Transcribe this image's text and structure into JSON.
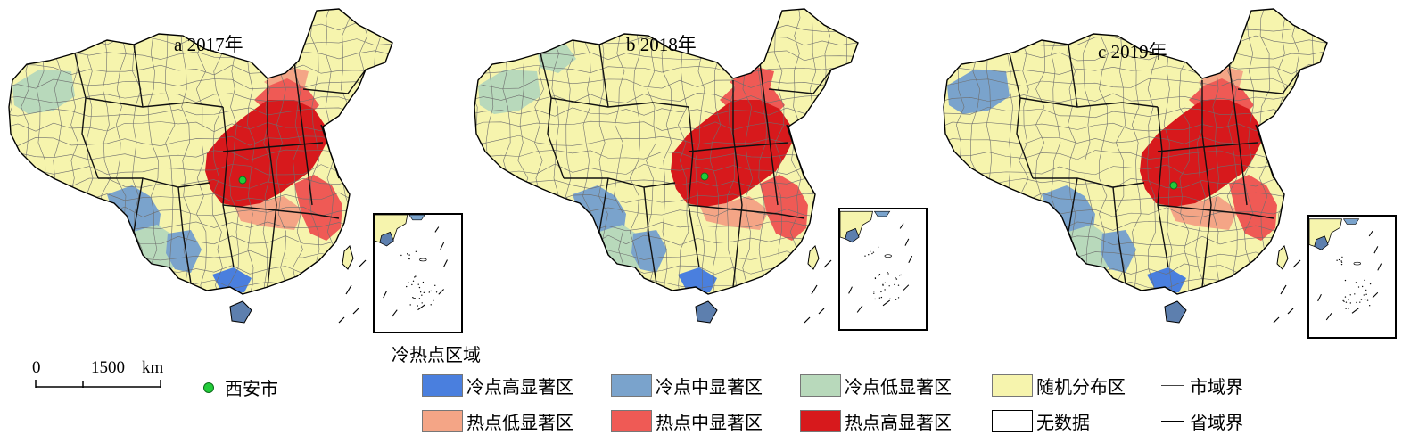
{
  "panels": [
    {
      "id": "a",
      "label": "a 2017年"
    },
    {
      "id": "b",
      "label": "b 2018年"
    },
    {
      "id": "c",
      "label": "c 2019年"
    }
  ],
  "city_marker": {
    "label": "西安市",
    "color": "#22cc3a"
  },
  "scale_bar": {
    "zero": "0",
    "distance": "1500",
    "unit": "km"
  },
  "legend": {
    "title": "冷热点区域",
    "items": [
      {
        "key": "cold-high",
        "label": "冷点高显著区",
        "color": "#4a7fde"
      },
      {
        "key": "cold-mid",
        "label": "冷点中显著区",
        "color": "#7aa3cc"
      },
      {
        "key": "cold-low",
        "label": "冷点低显著区",
        "color": "#b8d9bb"
      },
      {
        "key": "random",
        "label": "随机分布区",
        "color": "#f6f4ad"
      },
      {
        "key": "hot-low",
        "label": "热点低显著区",
        "color": "#f4a586"
      },
      {
        "key": "hot-mid",
        "label": "热点中显著区",
        "color": "#ef5a55"
      },
      {
        "key": "hot-high",
        "label": "热点高显著区",
        "color": "#d7191c"
      },
      {
        "key": "no-data",
        "label": "无数据",
        "color": "#ffffff"
      }
    ],
    "lines": [
      {
        "key": "city-boundary",
        "label": "市域界"
      },
      {
        "key": "province-boundary",
        "label": "省域界"
      }
    ]
  },
  "colors": {
    "cold_high": "#4a7fde",
    "cold_mid": "#7aa3cc",
    "cold_low": "#b8d9bb",
    "random": "#f6f4ad",
    "hot_low": "#f4a586",
    "hot_mid": "#ef5a55",
    "hot_high": "#d7191c",
    "island_fill": "#5d7fae"
  }
}
